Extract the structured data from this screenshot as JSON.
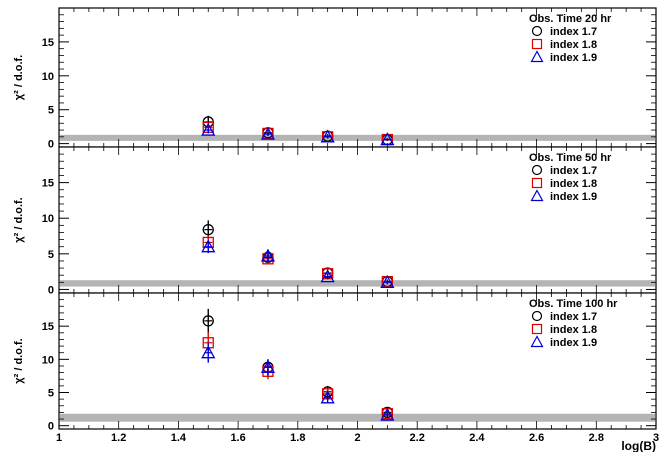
{
  "chart_data": [
    {
      "type": "scatter",
      "title": "",
      "xlabel": "log(B)",
      "ylabel": "χ² / d.o.f.",
      "xlim": [
        1,
        3
      ],
      "ylim": [
        -0.5,
        20
      ],
      "yticks": [
        0,
        5,
        10,
        15
      ],
      "reference_band": {
        "y0": 0.4,
        "y1": 1.3,
        "color": "#b4b4b4"
      },
      "legend": {
        "title": "Obs. Time 20 hr",
        "position": "top-right"
      },
      "series": [
        {
          "name": "index 1.7",
          "marker": "circle",
          "color": "#000000",
          "x": [
            1.5,
            1.7,
            1.9,
            2.1
          ],
          "y": [
            3.2,
            1.6,
            1.1,
            0.6
          ],
          "err": [
            0.9,
            0.4,
            0.3,
            0.2
          ]
        },
        {
          "name": "index 1.8",
          "marker": "square",
          "color": "#dd0000",
          "x": [
            1.5,
            1.7,
            1.9,
            2.1
          ],
          "y": [
            2.4,
            1.5,
            1.0,
            0.6
          ],
          "err": [
            0.6,
            0.3,
            0.25,
            0.2
          ]
        },
        {
          "name": "index 1.9",
          "marker": "triangle",
          "color": "#0000dd",
          "x": [
            1.5,
            1.7,
            1.9,
            2.1
          ],
          "y": [
            2.0,
            1.4,
            1.0,
            0.6
          ],
          "err": [
            0.5,
            0.3,
            0.25,
            0.2
          ]
        }
      ]
    },
    {
      "type": "scatter",
      "title": "",
      "xlabel": "log(B)",
      "ylabel": "χ² / d.o.f.",
      "xlim": [
        1,
        3
      ],
      "ylim": [
        -0.5,
        20
      ],
      "yticks": [
        0,
        5,
        10,
        15
      ],
      "reference_band": {
        "y0": 0.4,
        "y1": 1.3,
        "color": "#b4b4b4"
      },
      "legend": {
        "title": "Obs. Time 50 hr",
        "position": "top-right"
      },
      "series": [
        {
          "name": "index 1.7",
          "marker": "circle",
          "color": "#000000",
          "x": [
            1.5,
            1.7,
            1.9,
            2.1
          ],
          "y": [
            8.4,
            4.5,
            2.3,
            1.1
          ],
          "err": [
            1.3,
            0.8,
            0.5,
            0.3
          ]
        },
        {
          "name": "index 1.8",
          "marker": "square",
          "color": "#dd0000",
          "x": [
            1.5,
            1.7,
            1.9,
            2.1
          ],
          "y": [
            6.6,
            4.3,
            2.2,
            1.1
          ],
          "err": [
            1.0,
            0.7,
            0.5,
            0.3
          ]
        },
        {
          "name": "index 1.9",
          "marker": "triangle",
          "color": "#0000dd",
          "x": [
            1.5,
            1.7,
            1.9,
            2.1
          ],
          "y": [
            6.0,
            4.7,
            1.8,
            1.0
          ],
          "err": [
            0.9,
            0.8,
            0.4,
            0.3
          ]
        }
      ]
    },
    {
      "type": "scatter",
      "title": "",
      "xlabel": "log(B)",
      "ylabel": "χ² / d.o.f.",
      "xlim": [
        1,
        3
      ],
      "ylim": [
        -0.5,
        20
      ],
      "yticks": [
        0,
        5,
        10,
        15
      ],
      "xticks": [
        1,
        1.2,
        1.4,
        1.6,
        1.8,
        2,
        2.2,
        2.4,
        2.6,
        2.8,
        3
      ],
      "reference_band": {
        "y0": 0.6,
        "y1": 1.8,
        "color": "#b4b4b4"
      },
      "legend": {
        "title": "Obs. Time 100 hr",
        "position": "top-right"
      },
      "series": [
        {
          "name": "index 1.7",
          "marker": "circle",
          "color": "#000000",
          "x": [
            1.5,
            1.7,
            1.9,
            2.1
          ],
          "y": [
            15.8,
            8.8,
            5.1,
            2.0
          ],
          "err": [
            1.8,
            1.2,
            0.9,
            0.4
          ]
        },
        {
          "name": "index 1.8",
          "marker": "square",
          "color": "#dd0000",
          "x": [
            1.5,
            1.7,
            1.9,
            2.1
          ],
          "y": [
            12.5,
            8.2,
            4.8,
            1.8
          ],
          "err": [
            1.6,
            1.2,
            0.9,
            0.4
          ]
        },
        {
          "name": "index 1.9",
          "marker": "triangle",
          "color": "#0000dd",
          "x": [
            1.5,
            1.7,
            1.9,
            2.1
          ],
          "y": [
            11.0,
            8.8,
            4.2,
            1.6
          ],
          "err": [
            1.5,
            1.2,
            0.7,
            0.4
          ]
        }
      ]
    }
  ]
}
